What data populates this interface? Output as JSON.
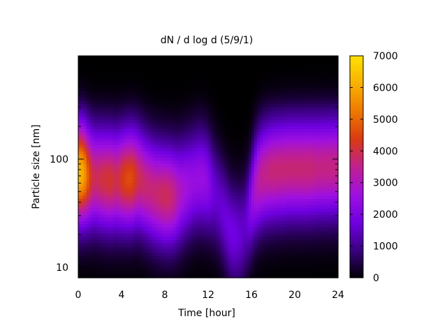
{
  "chart_data": {
    "type": "heatmap",
    "title": "dN / d log d (5/9/1)",
    "xlabel": "Time [hour]",
    "ylabel": "Particle size [nm]",
    "xlim": [
      0,
      24
    ],
    "ylim": [
      8,
      900
    ],
    "y_scale": "log",
    "x_ticks": [
      0,
      4,
      8,
      12,
      16,
      20,
      24
    ],
    "x_tick_labels": [
      "0",
      "4",
      "8",
      "12",
      "16",
      "20",
      "24"
    ],
    "y_ticks": [
      10,
      100
    ],
    "y_tick_labels": [
      "10",
      "100"
    ],
    "colorbar": {
      "range": [
        0,
        7000
      ],
      "ticks": [
        0,
        1000,
        2000,
        3000,
        4000,
        5000,
        6000,
        7000
      ],
      "tick_labels": [
        "0",
        "1000",
        "2000",
        "3000",
        "4000",
        "5000",
        "6000",
        "7000"
      ],
      "palette": [
        "#000000",
        "#3a0080",
        "#6f00e0",
        "#9e10e0",
        "#c02090",
        "#d83a14",
        "#ee7800",
        "#f8b000",
        "#ffe000"
      ]
    },
    "time": [
      0.0,
      0.5,
      1.0,
      1.5,
      2.0,
      2.5,
      3.0,
      3.5,
      4.0,
      4.5,
      5.0,
      5.5,
      6.0,
      6.5,
      7.0,
      7.5,
      8.0,
      8.5,
      9.0,
      9.5,
      10.0,
      10.5,
      11.0,
      11.5,
      12.0,
      12.5,
      13.0,
      13.5,
      14.0,
      14.5,
      15.0,
      15.5,
      16.0,
      16.5,
      17.0,
      17.5,
      18.0,
      18.5,
      19.0,
      19.5,
      20.0,
      20.5,
      21.0,
      21.5,
      22.0,
      22.5,
      23.0,
      23.5,
      24.0
    ],
    "mode_diameter_nm": [
      75,
      75,
      70,
      68,
      66,
      65,
      64,
      64,
      65,
      66,
      67,
      67,
      60,
      55,
      50,
      48,
      46,
      46,
      46,
      50,
      55,
      60,
      65,
      65,
      60,
      50,
      40,
      30,
      22,
      20,
      20,
      25,
      40,
      60,
      70,
      75,
      78,
      80,
      80,
      82,
      82,
      82,
      82,
      83,
      83,
      84,
      84,
      85,
      85
    ],
    "peak_concentration": [
      6300,
      6000,
      4600,
      3800,
      4000,
      4100,
      4200,
      3900,
      4300,
      4600,
      4600,
      4000,
      3800,
      3700,
      3700,
      3800,
      3900,
      3800,
      3400,
      2900,
      2700,
      2500,
      2500,
      2500,
      2300,
      1700,
      1600,
      1700,
      1800,
      1800,
      1600,
      1500,
      2300,
      3200,
      3500,
      3600,
      3700,
      3700,
      3700,
      3700,
      3700,
      3700,
      3700,
      3700,
      3600,
      3600,
      3600,
      3600,
      3600
    ]
  }
}
